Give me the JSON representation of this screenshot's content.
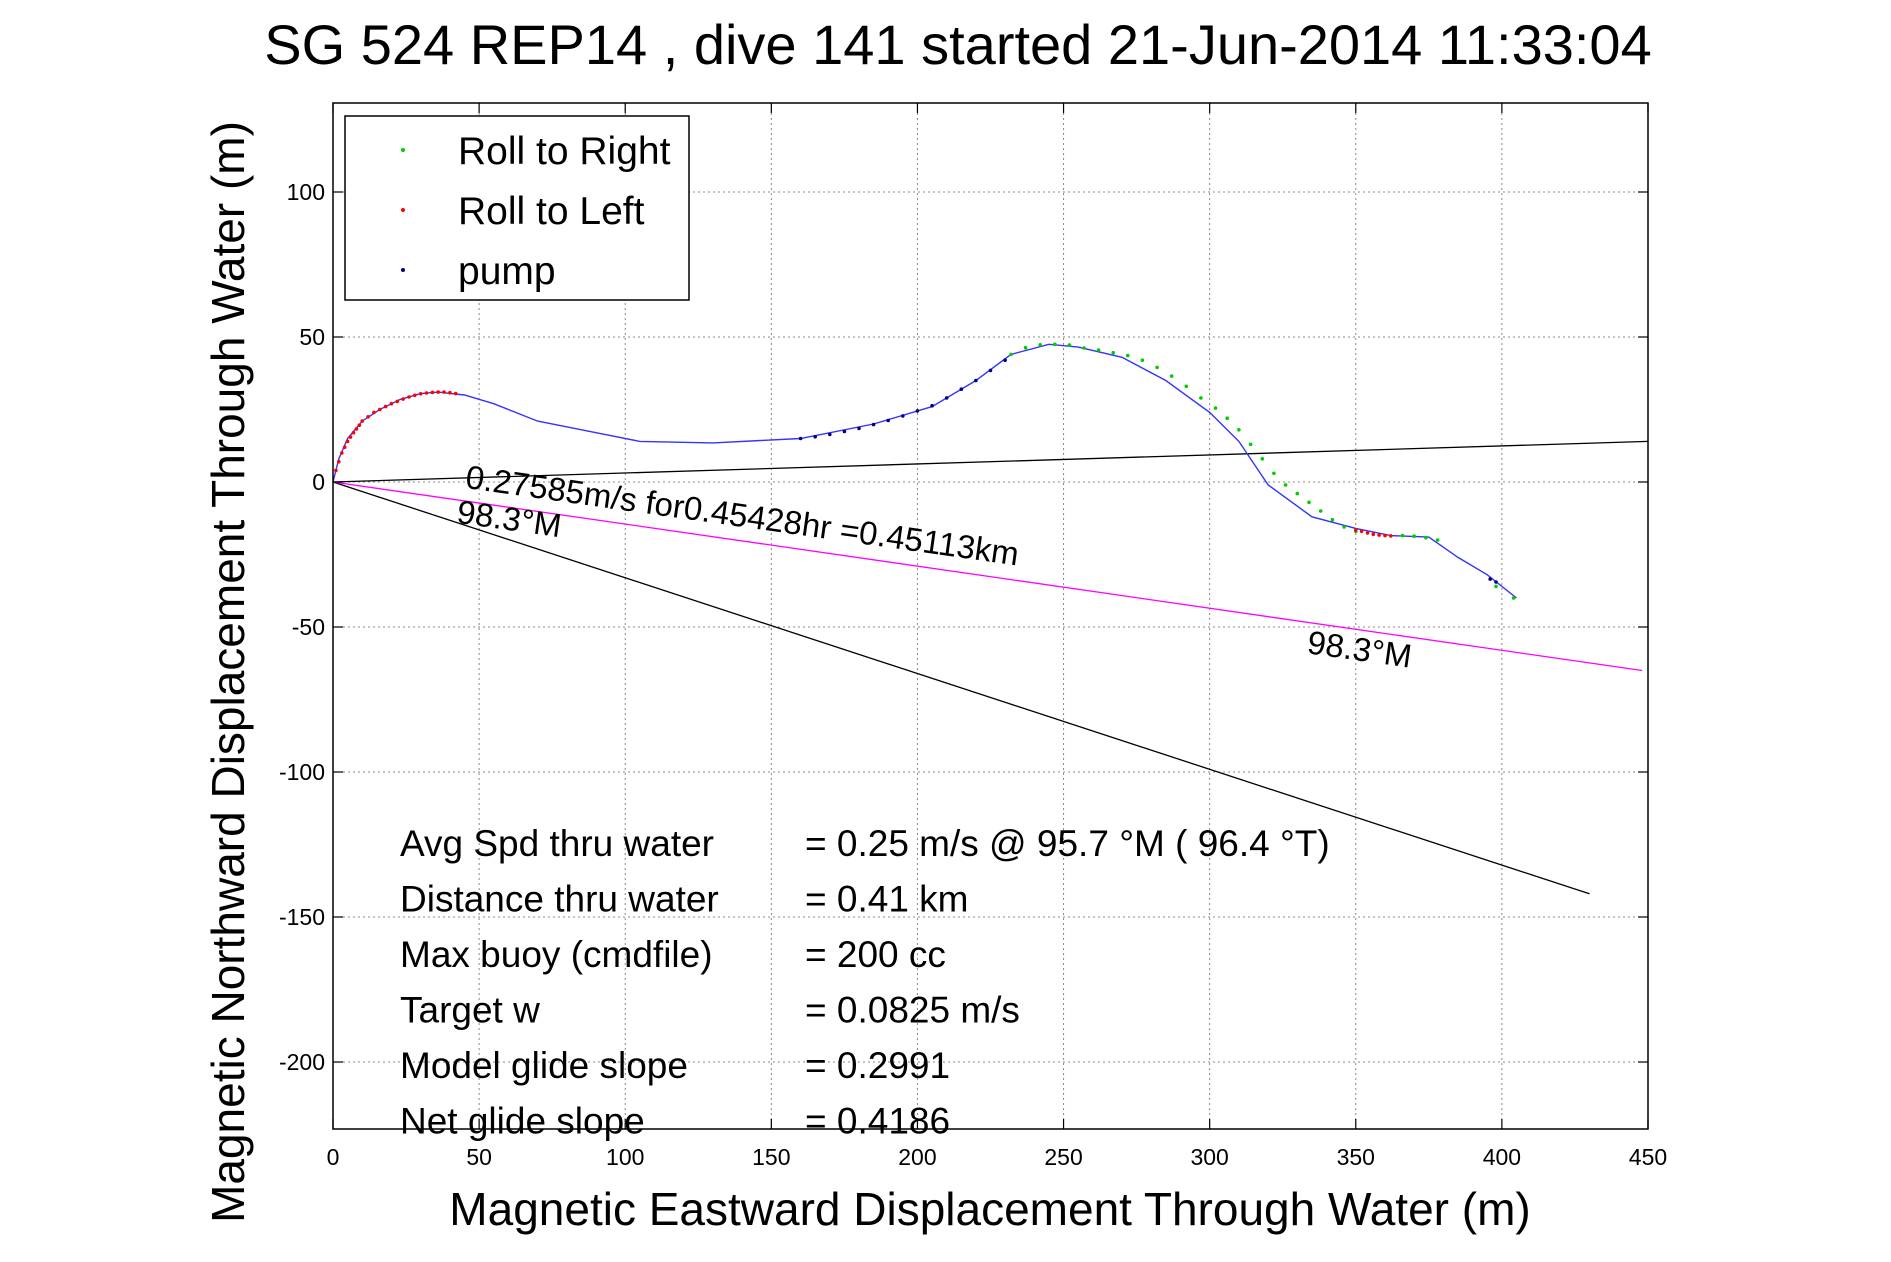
{
  "chart_data": {
    "type": "line",
    "title": "SG 524   REP14  , dive 141 started 21-Jun-2014 11:33:04",
    "xlabel": "Magnetic Eastward Displacement Through Water (m)",
    "ylabel": "Magnetic Northward Displacement Through Water (m)",
    "xlim": [
      0,
      450
    ],
    "ylim": [
      -225,
      130
    ],
    "xticks": [
      0,
      50,
      100,
      150,
      200,
      250,
      300,
      350,
      400,
      450
    ],
    "yticks": [
      -200,
      -150,
      -100,
      -50,
      0,
      50,
      100
    ],
    "xtick_labels": [
      "0",
      "50",
      "100",
      "150",
      "200",
      "250",
      "300",
      "350",
      "400",
      "450"
    ],
    "ytick_labels": [
      "-200",
      "-150",
      "-100",
      "-50",
      "0",
      "50",
      "100"
    ],
    "grid": true,
    "legend_position": "top-left",
    "legend": [
      {
        "label": "Roll to Right",
        "color": "#00cc00"
      },
      {
        "label": "Roll to Left",
        "color": "#ff0000"
      },
      {
        "label": "pump",
        "color": "#000080"
      }
    ],
    "track": {
      "color": "#3333ff",
      "x": [
        0,
        2,
        5,
        10,
        16,
        23,
        30,
        36,
        45,
        55,
        70,
        90,
        105,
        130,
        160,
        185,
        205,
        220,
        232,
        245,
        255,
        270,
        285,
        300,
        310,
        320,
        335,
        350,
        362,
        375,
        385,
        395,
        405
      ],
      "y": [
        0,
        8,
        15,
        21,
        25,
        28.5,
        30.5,
        31,
        30,
        27,
        21,
        17,
        14,
        13.5,
        15,
        20,
        26,
        35,
        44,
        47.5,
        46.5,
        43,
        35,
        24,
        14,
        -1,
        -12,
        -16,
        -18.5,
        -19,
        -26,
        -32,
        -40
      ]
    },
    "series": [
      {
        "name": "Roll to Right",
        "color": "#00cc00",
        "x": [
          232,
          237,
          242,
          247,
          252,
          257,
          262,
          267,
          272,
          277,
          282,
          287,
          292,
          297,
          302,
          306,
          310,
          314,
          318,
          322,
          326,
          330,
          334,
          338,
          342,
          346,
          350,
          366,
          370,
          374,
          378,
          398,
          404
        ],
        "y": [
          44,
          46.3,
          47.3,
          47.5,
          47.2,
          46.2,
          45.5,
          44.6,
          43.6,
          42,
          39.5,
          36.5,
          33,
          29,
          25.5,
          22,
          18,
          13,
          8,
          3,
          -1,
          -4,
          -7,
          -10,
          -13,
          -15.5,
          -17,
          -18.5,
          -18.7,
          -19.2,
          -20,
          -36,
          -40
        ]
      },
      {
        "name": "Roll to Left",
        "color": "#ff0000",
        "x": [
          1,
          2,
          3,
          4,
          5,
          6,
          7,
          8,
          9,
          10,
          12,
          14,
          16,
          18,
          20,
          22,
          24,
          26,
          28,
          30,
          32,
          34,
          36,
          38,
          40,
          42,
          350,
          352,
          354,
          356,
          358,
          360,
          362
        ],
        "y": [
          4,
          7,
          10,
          12,
          14,
          15.5,
          17,
          18.3,
          19.6,
          21,
          22.5,
          24,
          25,
          26,
          27,
          27.8,
          28.6,
          29.3,
          29.9,
          30.4,
          30.7,
          30.9,
          31,
          31,
          30.8,
          30.5,
          -16.5,
          -17,
          -17.6,
          -18,
          -18.3,
          -18.5,
          -18.6
        ]
      },
      {
        "name": "pump",
        "color": "#000080",
        "x": [
          160,
          165,
          170,
          175,
          180,
          185,
          190,
          195,
          200,
          205,
          210,
          215,
          220,
          225,
          230,
          396,
          398
        ],
        "y": [
          15,
          15.6,
          16.4,
          17.4,
          18.5,
          19.8,
          21.2,
          22.8,
          24.5,
          26.3,
          29,
          32,
          35,
          38.5,
          42,
          -33.5,
          -34.5
        ]
      }
    ],
    "reference_lines": [
      {
        "color": "#000000",
        "x": [
          0,
          450
        ],
        "y": [
          0,
          14
        ]
      },
      {
        "color": "#000000",
        "x": [
          0,
          430
        ],
        "y": [
          0,
          -142
        ]
      },
      {
        "color": "#ff00ff",
        "x": [
          0,
          448
        ],
        "y": [
          0,
          -65
        ]
      }
    ],
    "annotations": [
      {
        "text": "0.27585m/s for0.45428hr =0.45113km",
        "x": 45,
        "y": -2,
        "angle_deg": 8,
        "anchor": "start"
      },
      {
        "text": "98.3°M",
        "x": 42,
        "y": -14,
        "angle_deg": 8,
        "anchor": "start"
      },
      {
        "text": "98.3°M",
        "x": 333,
        "y": -59,
        "angle_deg": 8,
        "anchor": "start"
      }
    ]
  },
  "stats": {
    "labels": [
      "Avg Spd thru water",
      "Distance thru water",
      "Max buoy (cmdfile)",
      "Target w",
      "Model glide slope",
      "Net glide slope"
    ],
    "values": [
      "=  0.25 m/s @  95.7 °M ( 96.4 °T)",
      "=  0.41 km",
      "= 200 cc",
      "= 0.0825 m/s",
      "= 0.2991",
      "= 0.4186"
    ]
  }
}
